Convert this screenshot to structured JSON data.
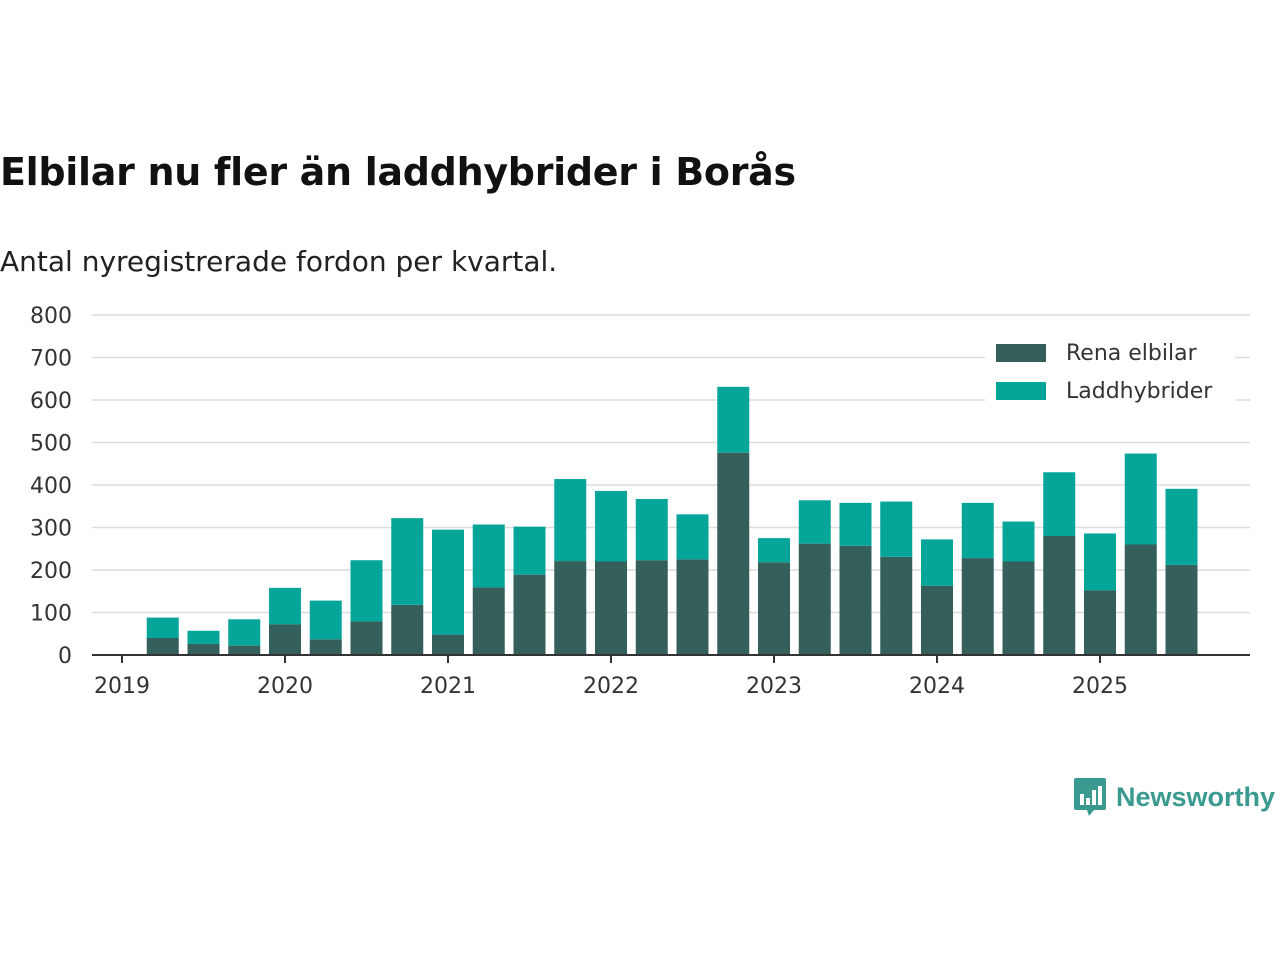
{
  "title": "Elbilar nu fler än laddhybrider i Borås",
  "subtitle": "Antal nyregistrerade fordon per kvartal.",
  "brand": {
    "name": "Newsworthy",
    "color": "#3a9a90"
  },
  "chart_data": {
    "type": "bar",
    "stacked": true,
    "categories": [
      "2019 Q2",
      "2019 Q3",
      "2019 Q4",
      "2020 Q1",
      "2020 Q2",
      "2020 Q3",
      "2020 Q4",
      "2021 Q1",
      "2021 Q2",
      "2021 Q3",
      "2021 Q4",
      "2022 Q1",
      "2022 Q2",
      "2022 Q3",
      "2022 Q4",
      "2023 Q1",
      "2023 Q2",
      "2023 Q3",
      "2023 Q4",
      "2024 Q1",
      "2024 Q2",
      "2024 Q3",
      "2024 Q4",
      "2025 Q1",
      "2025 Q2",
      "2025 Q3"
    ],
    "series": [
      {
        "name": "Rena elbilar",
        "color": "#355f5b",
        "values": [
          40,
          26,
          22,
          72,
          37,
          79,
          118,
          48,
          159,
          189,
          221,
          220,
          223,
          225,
          476,
          218,
          262,
          257,
          231,
          163,
          228,
          220,
          280,
          152,
          260,
          212
        ]
      },
      {
        "name": "Laddhybrider",
        "color": "#06a59a",
        "values": [
          48,
          31,
          62,
          86,
          91,
          144,
          204,
          247,
          148,
          113,
          193,
          166,
          144,
          106,
          155,
          57,
          102,
          101,
          130,
          109,
          130,
          94,
          150,
          134,
          214,
          179
        ]
      }
    ],
    "x_ticks": [
      "2019",
      "2020",
      "2021",
      "2022",
      "2023",
      "2024",
      "2025"
    ],
    "y_ticks": [
      "0",
      "100",
      "200",
      "300",
      "400",
      "500",
      "600",
      "700",
      "800"
    ],
    "ylim": [
      0,
      800
    ],
    "xlabel": "",
    "ylabel": "",
    "legend_position": "top-right",
    "grid": true
  }
}
